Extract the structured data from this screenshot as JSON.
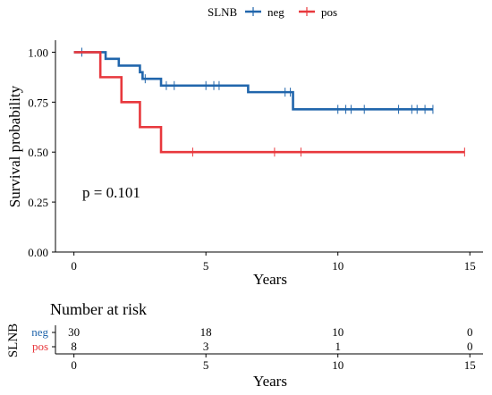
{
  "chart_data": [
    {
      "type": "line",
      "subtype": "kaplan-meier",
      "legend": {
        "title": "SLNB",
        "placement": "top-center",
        "entries": [
          {
            "name": "neg",
            "color": "#2166ac"
          },
          {
            "name": "pos",
            "color": "#e8383d"
          }
        ]
      },
      "xlabel": "Years",
      "ylabel": "Survival probability",
      "xlim": [
        -0.7,
        15.5
      ],
      "ylim": [
        0,
        1.06
      ],
      "xticks": [
        0,
        5,
        10,
        15
      ],
      "yticks": [
        0.0,
        0.25,
        0.5,
        0.75,
        1.0
      ],
      "ytick_labels": [
        "0.00",
        "0.25",
        "0.50",
        "0.75",
        "1.00"
      ],
      "annotation": "p = 0.101",
      "annotation_at": {
        "x": 0.3,
        "y": 0.25
      },
      "grid": false,
      "series": [
        {
          "name": "neg",
          "color": "#2166ac",
          "steps": [
            [
              0,
              1.0
            ],
            [
              1.2,
              0.967
            ],
            [
              1.7,
              0.933
            ],
            [
              2.5,
              0.9
            ],
            [
              2.6,
              0.867
            ],
            [
              3.3,
              0.833
            ],
            [
              6.6,
              0.8
            ],
            [
              8.3,
              0.714
            ]
          ],
          "end": 13.6,
          "censored": [
            [
              0.3,
              1.0
            ],
            [
              2.7,
              0.867
            ],
            [
              3.5,
              0.833
            ],
            [
              3.8,
              0.833
            ],
            [
              5.0,
              0.833
            ],
            [
              5.3,
              0.833
            ],
            [
              5.5,
              0.833
            ],
            [
              8.0,
              0.8
            ],
            [
              8.2,
              0.8
            ],
            [
              10.0,
              0.714
            ],
            [
              10.3,
              0.714
            ],
            [
              10.5,
              0.714
            ],
            [
              11.0,
              0.714
            ],
            [
              12.3,
              0.714
            ],
            [
              12.8,
              0.714
            ],
            [
              13.0,
              0.714
            ],
            [
              13.3,
              0.714
            ],
            [
              13.6,
              0.714
            ]
          ]
        },
        {
          "name": "pos",
          "color": "#e8383d",
          "steps": [
            [
              0,
              1.0
            ],
            [
              1.0,
              0.875
            ],
            [
              1.8,
              0.75
            ],
            [
              2.5,
              0.625
            ],
            [
              3.3,
              0.5
            ]
          ],
          "end": 14.8,
          "censored": [
            [
              4.5,
              0.5
            ],
            [
              7.6,
              0.5
            ],
            [
              8.6,
              0.5
            ],
            [
              14.8,
              0.5
            ]
          ]
        }
      ]
    },
    {
      "type": "table",
      "title": "Number at risk",
      "ylabel": "SLNB",
      "xlabel": "Years",
      "xticks": [
        0,
        5,
        10,
        15
      ],
      "rows": [
        {
          "name": "neg",
          "color": "#2166ac",
          "values": [
            30,
            18,
            10,
            0
          ]
        },
        {
          "name": "pos",
          "color": "#e8383d",
          "values": [
            8,
            3,
            1,
            0
          ]
        }
      ]
    }
  ]
}
